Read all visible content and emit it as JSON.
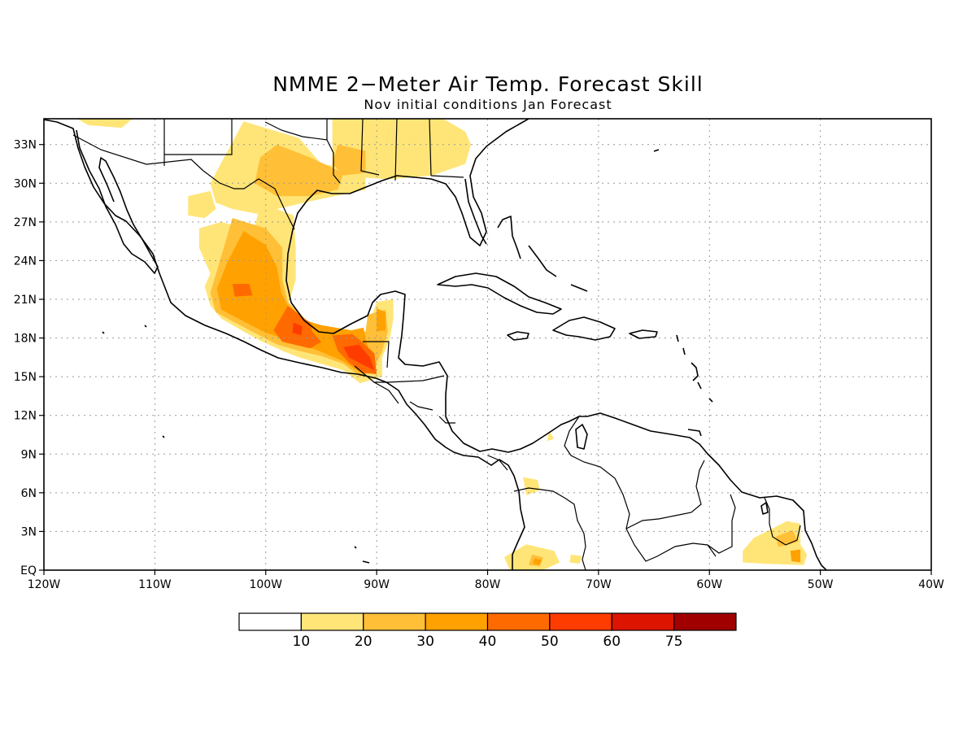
{
  "title": "NMME 2−Meter Air Temp. Forecast Skill",
  "subtitle": "Nov initial conditions  Jan Forecast",
  "map": {
    "lon_range": [
      -120,
      -40
    ],
    "lat_range": [
      0,
      35
    ],
    "lon_ticks": [
      {
        "v": -120,
        "label": "120W"
      },
      {
        "v": -110,
        "label": "110W"
      },
      {
        "v": -100,
        "label": "100W"
      },
      {
        "v": -90,
        "label": "90W"
      },
      {
        "v": -80,
        "label": "80W"
      },
      {
        "v": -70,
        "label": "70W"
      },
      {
        "v": -60,
        "label": "60W"
      },
      {
        "v": -50,
        "label": "50W"
      },
      {
        "v": -40,
        "label": "40W"
      }
    ],
    "lat_ticks": [
      {
        "v": 0,
        "label": "EQ"
      },
      {
        "v": 3,
        "label": "3N"
      },
      {
        "v": 6,
        "label": "6N"
      },
      {
        "v": 9,
        "label": "9N"
      },
      {
        "v": 12,
        "label": "12N"
      },
      {
        "v": 15,
        "label": "15N"
      },
      {
        "v": 18,
        "label": "18N"
      },
      {
        "v": 21,
        "label": "21N"
      },
      {
        "v": 24,
        "label": "24N"
      },
      {
        "v": 27,
        "label": "27N"
      },
      {
        "v": 30,
        "label": "30N"
      },
      {
        "v": 33,
        "label": "33N"
      }
    ],
    "grid": "dotted"
  },
  "colorbar": {
    "levels": [
      "10",
      "20",
      "30",
      "40",
      "50",
      "60",
      "75"
    ],
    "colors": [
      "#ffffff",
      "#ffe577",
      "#ffbf37",
      "#ffa100",
      "#ff6a00",
      "#ff3c00",
      "#dc1400",
      "#a00000"
    ]
  },
  "skill_regions": [
    {
      "cls": 1,
      "pts": [
        [
          -117,
          35
        ],
        [
          -112,
          35
        ],
        [
          -113,
          34.3
        ],
        [
          -116,
          34.5
        ]
      ]
    },
    {
      "cls": 1,
      "pts": [
        [
          -102,
          34.8
        ],
        [
          -97,
          33.5
        ],
        [
          -95,
          31.5
        ],
        [
          -91,
          31
        ],
        [
          -91,
          29.5
        ],
        [
          -96,
          28.6
        ],
        [
          -99,
          28
        ],
        [
          -100,
          27.5
        ],
        [
          -103,
          28
        ],
        [
          -104.5,
          28.5
        ],
        [
          -105,
          30
        ]
      ]
    },
    {
      "cls": 1,
      "pts": [
        [
          -94,
          35
        ],
        [
          -84,
          35
        ],
        [
          -82,
          34
        ],
        [
          -81.5,
          33
        ],
        [
          -82,
          31.5
        ],
        [
          -85,
          30.6
        ],
        [
          -89,
          30.3
        ],
        [
          -92,
          30.5
        ],
        [
          -94,
          31.2
        ]
      ]
    },
    {
      "cls": 1,
      "pts": [
        [
          -107,
          29
        ],
        [
          -105,
          29.4
        ],
        [
          -104.5,
          28
        ],
        [
          -105.5,
          27.3
        ],
        [
          -107,
          27.5
        ]
      ]
    },
    {
      "cls": 1,
      "pts": [
        [
          -106,
          26.5
        ],
        [
          -104,
          27
        ],
        [
          -102,
          26.5
        ],
        [
          -101,
          24.8
        ],
        [
          -101.5,
          23
        ],
        [
          -103,
          22.5
        ],
        [
          -105,
          23
        ],
        [
          -106,
          25
        ]
      ]
    },
    {
      "cls": 1,
      "pts": [
        [
          -100.5,
          28.5
        ],
        [
          -97.5,
          27.5
        ],
        [
          -97.3,
          25
        ],
        [
          -97.3,
          22.5
        ],
        [
          -98,
          20.5
        ],
        [
          -96.8,
          19
        ],
        [
          -95,
          18.5
        ],
        [
          -93,
          18.3
        ],
        [
          -91,
          18.4
        ],
        [
          -90.5,
          19.5
        ],
        [
          -90,
          20.8
        ],
        [
          -88.5,
          21
        ],
        [
          -88.5,
          19.5
        ],
        [
          -88.8,
          18
        ],
        [
          -89.5,
          16.5
        ],
        [
          -89.5,
          15
        ],
        [
          -91.5,
          14.5
        ],
        [
          -93,
          15.5
        ],
        [
          -95,
          16
        ],
        [
          -97,
          16.5
        ],
        [
          -98.5,
          17
        ],
        [
          -100.5,
          17.8
        ],
        [
          -102,
          18.5
        ],
        [
          -104,
          19.5
        ],
        [
          -105,
          20.5
        ],
        [
          -105.5,
          22
        ],
        [
          -104.5,
          24
        ],
        [
          -103,
          25.5
        ],
        [
          -101,
          26.5
        ]
      ]
    },
    {
      "cls": 1,
      "pts": [
        [
          -76.5,
          2
        ],
        [
          -74,
          1.5
        ],
        [
          -73.5,
          0.6
        ],
        [
          -75,
          0
        ],
        [
          -78,
          0
        ],
        [
          -78.5,
          1
        ]
      ]
    },
    {
      "cls": 1,
      "pts": [
        [
          -56,
          2.5
        ],
        [
          -53,
          3.8
        ],
        [
          -51.8,
          3.6
        ],
        [
          -51.8,
          2
        ],
        [
          -51.2,
          1.2
        ],
        [
          -51.5,
          0.4
        ],
        [
          -55,
          0.5
        ],
        [
          -57,
          0.6
        ],
        [
          -57,
          1.5
        ]
      ]
    },
    {
      "cls": 1,
      "pts": [
        [
          -76.8,
          7.2
        ],
        [
          -75.5,
          7
        ],
        [
          -75.3,
          6.2
        ],
        [
          -76.5,
          5.8
        ]
      ]
    },
    {
      "cls": 1,
      "pts": [
        [
          -72.5,
          1.2
        ],
        [
          -71.5,
          1.1
        ],
        [
          -71.7,
          0.5
        ],
        [
          -72.6,
          0.6
        ]
      ]
    },
    {
      "cls": 1,
      "pts": [
        [
          -74.5,
          10.8
        ],
        [
          -74,
          10.2
        ],
        [
          -74.6,
          10
        ]
      ]
    },
    {
      "cls": 2,
      "pts": [
        [
          -99,
          33
        ],
        [
          -96,
          32
        ],
        [
          -93,
          30.8
        ],
        [
          -93.5,
          29.5
        ],
        [
          -96,
          29
        ],
        [
          -99,
          29
        ],
        [
          -101,
          30
        ],
        [
          -100.5,
          32
        ]
      ]
    },
    {
      "cls": 2,
      "pts": [
        [
          -93.5,
          33
        ],
        [
          -91,
          32.5
        ],
        [
          -91,
          30.8
        ],
        [
          -93,
          30.6
        ],
        [
          -94,
          31.5
        ]
      ]
    },
    {
      "cls": 2,
      "pts": [
        [
          -103,
          27.3
        ],
        [
          -100,
          26.5
        ],
        [
          -98.5,
          25
        ],
        [
          -98.5,
          22.5
        ],
        [
          -98,
          20.8
        ],
        [
          -96.8,
          19.8
        ],
        [
          -96,
          19
        ],
        [
          -92.5,
          18.4
        ],
        [
          -91,
          18.5
        ],
        [
          -90.8,
          19.8
        ],
        [
          -89.2,
          20.2
        ],
        [
          -89,
          18.5
        ],
        [
          -89.5,
          17
        ],
        [
          -90.3,
          15.5
        ],
        [
          -91.5,
          15
        ],
        [
          -93,
          16
        ],
        [
          -95,
          16.6
        ],
        [
          -97,
          17
        ],
        [
          -99,
          17.5
        ],
        [
          -101,
          18.4
        ],
        [
          -103,
          19.3
        ],
        [
          -104.5,
          20
        ],
        [
          -105,
          21.5
        ],
        [
          -104.3,
          23.5
        ]
      ]
    },
    {
      "cls": 2,
      "pts": [
        [
          -54,
          2.6
        ],
        [
          -52.5,
          3.1
        ],
        [
          -52,
          2.2
        ],
        [
          -53.8,
          1.8
        ]
      ]
    },
    {
      "cls": 2,
      "pts": [
        [
          -76,
          1.2
        ],
        [
          -75,
          1
        ],
        [
          -75.3,
          0.3
        ],
        [
          -76.3,
          0.4
        ]
      ]
    },
    {
      "cls": 3,
      "pts": [
        [
          -102,
          26.3
        ],
        [
          -100,
          25.2
        ],
        [
          -99,
          23.5
        ],
        [
          -98.6,
          21.5
        ],
        [
          -98,
          20.5
        ],
        [
          -97,
          19.5
        ],
        [
          -95,
          19
        ],
        [
          -92.3,
          18.6
        ],
        [
          -91.2,
          18.8
        ],
        [
          -90.8,
          17.3
        ],
        [
          -90.2,
          16
        ],
        [
          -91.5,
          15.3
        ],
        [
          -93,
          16.2
        ],
        [
          -95.2,
          17
        ],
        [
          -97.5,
          17.7
        ],
        [
          -100,
          18.4
        ],
        [
          -101.8,
          19.2
        ],
        [
          -104,
          20.2
        ],
        [
          -104.4,
          21.8
        ],
        [
          -103.5,
          23.8
        ]
      ]
    },
    {
      "cls": 3,
      "pts": [
        [
          -90,
          20.3
        ],
        [
          -89.2,
          20
        ],
        [
          -89.2,
          18.6
        ],
        [
          -90,
          18.5
        ]
      ]
    },
    {
      "cls": 3,
      "pts": [
        [
          -52.7,
          1.5
        ],
        [
          -51.8,
          1.6
        ],
        [
          -51.8,
          0.6
        ],
        [
          -52.6,
          0.7
        ]
      ]
    },
    {
      "cls": 3,
      "pts": [
        [
          -75.8,
          0.9
        ],
        [
          -75.1,
          0.8
        ],
        [
          -75.3,
          0.4
        ],
        [
          -75.9,
          0.5
        ]
      ]
    },
    {
      "cls": 4,
      "pts": [
        [
          -98,
          20.5
        ],
        [
          -96.5,
          19.5
        ],
        [
          -96,
          19.2
        ],
        [
          -95.8,
          18.5
        ],
        [
          -95,
          17.7
        ],
        [
          -96,
          17.2
        ],
        [
          -98.5,
          17.7
        ],
        [
          -99.3,
          18.6
        ]
      ]
    },
    {
      "cls": 4,
      "pts": [
        [
          -94,
          18.2
        ],
        [
          -92.2,
          18.3
        ],
        [
          -91.2,
          17.6
        ],
        [
          -90.2,
          16.8
        ],
        [
          -90,
          15.2
        ],
        [
          -91.3,
          15.3
        ],
        [
          -92.5,
          16.1
        ],
        [
          -93.5,
          17
        ]
      ]
    },
    {
      "cls": 4,
      "pts": [
        [
          -103,
          22.2
        ],
        [
          -101.5,
          22.2
        ],
        [
          -101.2,
          21.3
        ],
        [
          -102.8,
          21.2
        ]
      ]
    },
    {
      "cls": 5,
      "pts": [
        [
          -97.5,
          19.2
        ],
        [
          -96.7,
          18.9
        ],
        [
          -96.8,
          18.2
        ],
        [
          -97.6,
          18.4
        ]
      ]
    },
    {
      "cls": 5,
      "pts": [
        [
          -93,
          17.3
        ],
        [
          -91.6,
          17.5
        ],
        [
          -90.6,
          16.5
        ],
        [
          -90.2,
          15.5
        ],
        [
          -91.2,
          15.9
        ],
        [
          -92.5,
          16.5
        ]
      ]
    }
  ]
}
